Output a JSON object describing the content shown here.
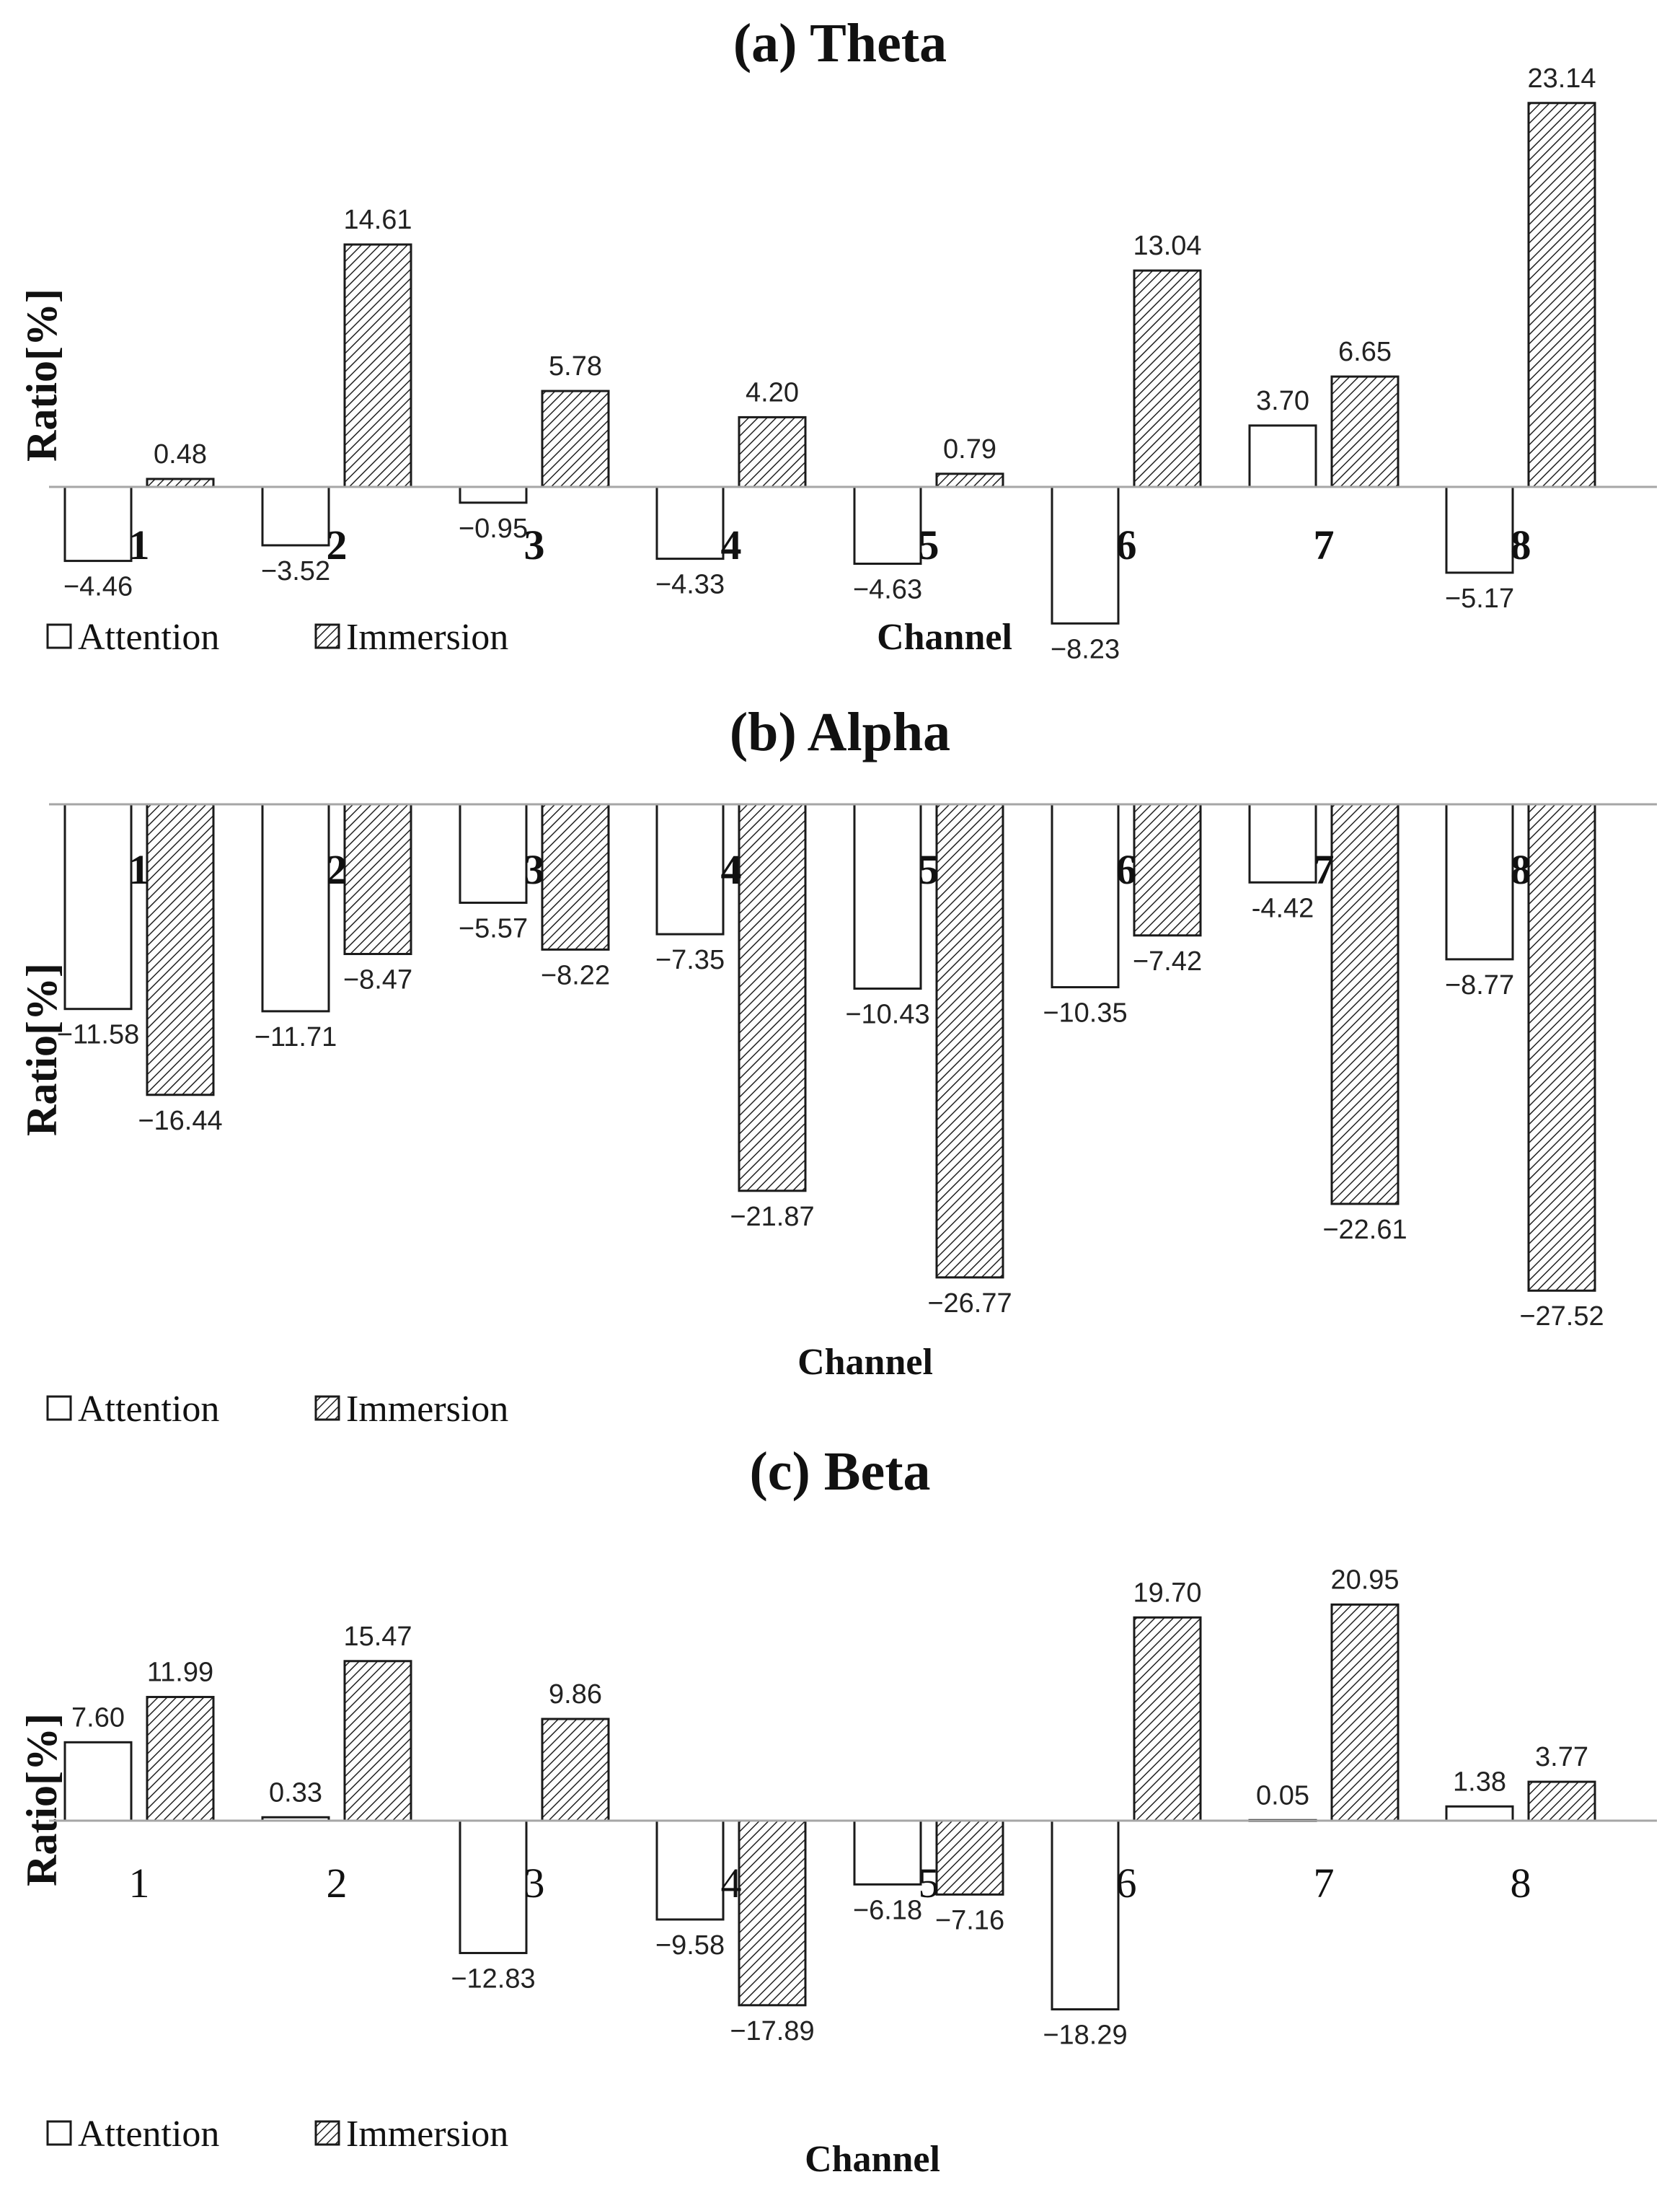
{
  "legend": {
    "series_a": "Attention",
    "series_b": "Immersion"
  },
  "chart_data": [
    {
      "type": "bar",
      "title": "(a)  Theta",
      "xlabel": "Channel",
      "ylabel": "Ratio[%]",
      "categories": [
        "1",
        "2",
        "3",
        "4",
        "5",
        "6",
        "7",
        "8"
      ],
      "series": [
        {
          "name": "Attention",
          "values": [
            -4.46,
            -3.52,
            -0.95,
            -4.33,
            -4.63,
            -8.23,
            3.7,
            -5.17
          ]
        },
        {
          "name": "Immersion",
          "values": [
            0.48,
            14.61,
            5.78,
            4.2,
            0.79,
            13.04,
            6.65,
            23.14
          ]
        }
      ],
      "labels": [
        [
          "−4.46",
          "−3.52",
          "−0.95",
          "−4.33",
          "−4.63",
          "−8.23",
          "3.70",
          "−5.17"
        ],
        [
          "0.48",
          "14.61",
          "5.78",
          "4.20",
          "0.79",
          "13.04",
          "6.65",
          "23.14"
        ]
      ],
      "tick_style": "bold",
      "legend_position": "bottom-left",
      "grid": false
    },
    {
      "type": "bar",
      "title": "(b)  Alpha",
      "xlabel": "Channel",
      "ylabel": "Ratio[%]",
      "categories": [
        "1",
        "2",
        "3",
        "4",
        "5",
        "6",
        "7",
        "8"
      ],
      "series": [
        {
          "name": "Attention",
          "values": [
            -11.58,
            -11.71,
            -5.57,
            -7.35,
            -10.43,
            -10.35,
            -4.42,
            -8.77
          ]
        },
        {
          "name": "Immersion",
          "values": [
            -16.44,
            -8.47,
            -8.22,
            -21.87,
            -26.77,
            -7.42,
            -22.61,
            -27.52
          ]
        }
      ],
      "labels": [
        [
          "−11.58",
          "−11.71",
          "−5.57",
          "−7.35",
          "−10.43",
          "−10.35",
          "-4.42",
          "−8.77"
        ],
        [
          "−16.44",
          "−8.47",
          "−8.22",
          "−21.87",
          "−26.77",
          "−7.42",
          "−22.61",
          "−27.52"
        ]
      ],
      "tick_style": "bold",
      "legend_position": "bottom-left",
      "grid": false
    },
    {
      "type": "bar",
      "title": "(c)  Beta",
      "xlabel": "Channel",
      "ylabel": "Ratio[%]",
      "categories": [
        "1",
        "2",
        "3",
        "4",
        "5",
        "6",
        "7",
        "8"
      ],
      "series": [
        {
          "name": "Attention",
          "values": [
            7.6,
            0.33,
            -12.83,
            -9.58,
            -6.18,
            -18.29,
            0.05,
            1.38
          ]
        },
        {
          "name": "Immersion",
          "values": [
            11.99,
            15.47,
            9.86,
            -17.89,
            -7.16,
            19.7,
            20.95,
            3.77
          ]
        }
      ],
      "labels": [
        [
          "7.60",
          "0.33",
          "−12.83",
          "−9.58",
          "−6.18",
          "−18.29",
          "0.05",
          "1.38"
        ],
        [
          "11.99",
          "15.47",
          "9.86",
          "−17.89",
          "−7.16",
          "19.70",
          "20.95",
          "3.77"
        ]
      ],
      "tick_style": "regular",
      "legend_position": "bottom-left",
      "grid": false
    }
  ]
}
